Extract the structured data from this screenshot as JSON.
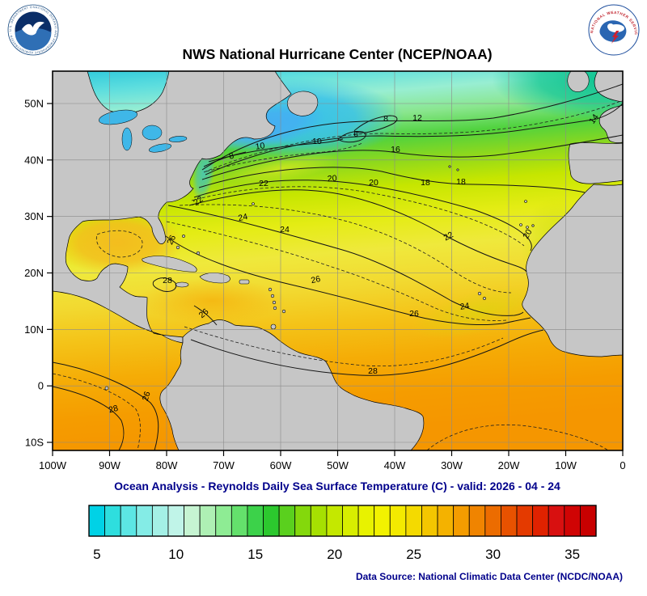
{
  "chart_data": {
    "type": "heatmap",
    "subtype": "filled-contour-sst-analysis",
    "title": "NWS National Hurricane Center (NCEP/NOAA)",
    "subtitle": "Ocean Analysis - Reynolds Daily Sea Surface Temperature (C) - valid: 2026 - 04 - 24",
    "variable": "Sea Surface Temperature",
    "units": "C",
    "valid_date": "2026 - 04 - 24",
    "region": "Atlantic basin, 100W-0 longitude, about 12S-56N latitude",
    "x_ticks": [
      "100W",
      "90W",
      "80W",
      "70W",
      "60W",
      "50W",
      "40W",
      "30W",
      "20W",
      "10W",
      "0"
    ],
    "y_ticks": [
      "50N",
      "40N",
      "30N",
      "20N",
      "10N",
      "0",
      "10S"
    ],
    "grid": true,
    "legend_position": "bottom",
    "colorbar": {
      "ticks": [
        5,
        10,
        15,
        20,
        25,
        30,
        35
      ],
      "range": [
        4.5,
        36.5
      ],
      "colors": [
        "#00d2e6",
        "#2edede",
        "#5ce6e4",
        "#84ece6",
        "#a4f0e6",
        "#c0f4e8",
        "#c6f4d2",
        "#aef0b4",
        "#8eec94",
        "#64e06c",
        "#3cd24a",
        "#2cc82e",
        "#5ad01e",
        "#84d80c",
        "#a6e002",
        "#c4e800",
        "#d8ee00",
        "#e8f200",
        "#f2f200",
        "#f4ea00",
        "#f4da00",
        "#f4c600",
        "#f4b200",
        "#f49c00",
        "#f08400",
        "#ec6c00",
        "#e85200",
        "#e43a00",
        "#e02200",
        "#d81010",
        "#d00404",
        "#c80000"
      ]
    },
    "labeled_isotherms_c": [
      6,
      8,
      10,
      12,
      14,
      16,
      18,
      20,
      22,
      24,
      26,
      28
    ],
    "contour_labels": [
      {
        "t": "8",
        "x": 287,
        "y": 196,
        "r": -15
      },
      {
        "t": "10",
        "x": 322,
        "y": 184,
        "r": -8
      },
      {
        "t": "10",
        "x": 392,
        "y": 178,
        "r": 0
      },
      {
        "t": "6",
        "x": 440,
        "y": 169,
        "r": 0
      },
      {
        "t": "8",
        "x": 477,
        "y": 150,
        "r": 0
      },
      {
        "t": "12",
        "x": 516,
        "y": 149,
        "r": 0
      },
      {
        "t": "14",
        "x": 737,
        "y": 149,
        "r": -55
      },
      {
        "t": "16",
        "x": 489,
        "y": 188,
        "r": 0
      },
      {
        "t": "18",
        "x": 526,
        "y": 229,
        "r": 0
      },
      {
        "t": "18",
        "x": 570,
        "y": 228,
        "r": 0
      },
      {
        "t": "20",
        "x": 411,
        "y": 224,
        "r": -5
      },
      {
        "t": "20",
        "x": 462,
        "y": 229,
        "r": 0
      },
      {
        "t": "20",
        "x": 655,
        "y": 291,
        "r": -60
      },
      {
        "t": "22",
        "x": 247,
        "y": 251,
        "r": -35
      },
      {
        "t": "22",
        "x": 326,
        "y": 230,
        "r": 0
      },
      {
        "t": "22",
        "x": 556,
        "y": 295,
        "r": -28
      },
      {
        "t": "24",
        "x": 301,
        "y": 272,
        "r": -12
      },
      {
        "t": "24",
        "x": 352,
        "y": 287,
        "r": 0
      },
      {
        "t": "24",
        "x": 575,
        "y": 382,
        "r": -8
      },
      {
        "t": "26",
        "x": 215,
        "y": 298,
        "r": -65
      },
      {
        "t": "26",
        "x": 254,
        "y": 390,
        "r": -40
      },
      {
        "t": "26",
        "x": 391,
        "y": 349,
        "r": -12
      },
      {
        "t": "26",
        "x": 512,
        "y": 391,
        "r": 0
      },
      {
        "t": "26",
        "x": 184,
        "y": 491,
        "r": -72
      },
      {
        "t": "28",
        "x": 207,
        "y": 350,
        "r": 0
      },
      {
        "t": "28",
        "x": 461,
        "y": 462,
        "r": 0
      },
      {
        "t": "28",
        "x": 141,
        "y": 509,
        "r": -15
      }
    ]
  },
  "captions": {
    "source": "Data Source: National Climatic Data Center (NCDC/NOAA)"
  },
  "logos": {
    "noaa_ring": "NATIONAL OCEANIC AND ATMOSPHERIC ADMINISTRATION · U.S. DEPARTMENT OF COMMERCE",
    "nws_ring": "NATIONAL WEATHER SERVICE"
  }
}
